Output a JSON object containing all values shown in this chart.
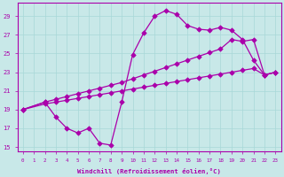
{
  "xlabel": "Windchill (Refroidissement éolien,°C)",
  "background_color": "#c8e8e8",
  "grid_color": "#a8d8d8",
  "line_color": "#aa00aa",
  "xlim_min": -0.5,
  "xlim_max": 23.5,
  "ylim_min": 14.5,
  "ylim_max": 30.4,
  "yticks": [
    15,
    17,
    19,
    21,
    23,
    25,
    27,
    29
  ],
  "xticks": [
    0,
    1,
    2,
    3,
    4,
    5,
    6,
    7,
    8,
    9,
    10,
    11,
    12,
    13,
    14,
    15,
    16,
    17,
    18,
    19,
    20,
    21,
    22,
    23
  ],
  "line1_x": [
    0,
    2,
    3,
    4,
    5,
    6,
    7,
    8,
    9,
    10,
    11,
    12,
    13,
    14,
    15,
    16,
    17,
    18,
    19,
    20,
    21,
    22,
    23
  ],
  "line1_y": [
    19.0,
    19.6,
    19.8,
    20.0,
    20.2,
    20.4,
    20.6,
    20.8,
    21.0,
    21.2,
    21.4,
    21.6,
    21.8,
    22.0,
    22.2,
    22.4,
    22.6,
    22.8,
    23.0,
    23.2,
    23.4,
    22.7,
    23.0
  ],
  "line2_x": [
    0,
    2,
    3,
    4,
    5,
    6,
    7,
    8,
    9,
    10,
    11,
    12,
    13,
    14,
    15,
    16,
    17,
    18,
    19,
    20,
    21,
    22,
    23
  ],
  "line2_y": [
    19.0,
    19.8,
    20.1,
    20.4,
    20.7,
    21.0,
    21.3,
    21.6,
    21.9,
    22.3,
    22.7,
    23.1,
    23.5,
    23.9,
    24.3,
    24.7,
    25.1,
    25.5,
    26.5,
    26.3,
    26.5,
    22.7,
    23.0
  ],
  "line3_x": [
    0,
    2,
    3,
    4,
    5,
    6,
    7,
    8,
    9,
    10,
    11,
    12,
    13,
    14,
    15,
    16,
    17,
    18,
    19,
    20,
    21,
    22,
    23
  ],
  "line3_y": [
    19.0,
    19.8,
    18.2,
    17.0,
    16.5,
    17.0,
    15.4,
    15.2,
    19.8,
    24.9,
    27.2,
    29.0,
    29.6,
    29.2,
    28.0,
    27.6,
    27.5,
    27.8,
    27.5,
    26.5,
    24.3,
    22.7,
    23.0
  ],
  "marker_size": 2.8,
  "linewidth": 0.9
}
